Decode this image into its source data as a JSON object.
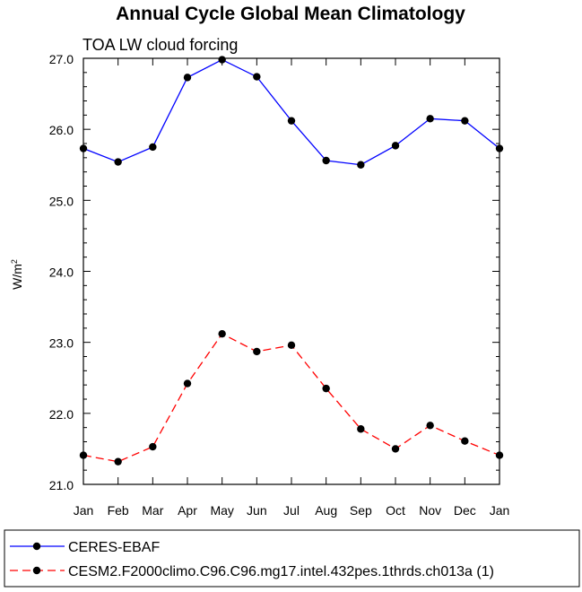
{
  "chart_data": {
    "type": "line",
    "title": "Annual Cycle Global Mean Climatology",
    "subtitle": "TOA LW cloud forcing",
    "ylabel": {
      "base": "W/m",
      "sup": "2"
    },
    "xlabel": "",
    "categories": [
      "Jan",
      "Feb",
      "Mar",
      "Apr",
      "May",
      "Jun",
      "Jul",
      "Aug",
      "Sep",
      "Oct",
      "Nov",
      "Dec",
      "Jan"
    ],
    "ylim": [
      21.0,
      27.0
    ],
    "yticks": [
      "21.0",
      "22.0",
      "23.0",
      "24.0",
      "25.0",
      "26.0",
      "27.0"
    ],
    "series": [
      {
        "name": "CERES-EBAF",
        "color": "#0000ff",
        "dash": "solid",
        "values": [
          25.73,
          25.54,
          25.75,
          26.73,
          26.98,
          26.74,
          26.12,
          25.56,
          25.5,
          25.77,
          26.15,
          26.12,
          25.73
        ]
      },
      {
        "name": "CESM2.F2000climo.C96.C96.mg17.intel.432pes.1thrds.ch013a (1)",
        "color": "#ff0000",
        "dash": "dashed",
        "values": [
          21.41,
          21.32,
          21.53,
          22.42,
          23.12,
          22.87,
          22.96,
          22.35,
          21.78,
          21.5,
          21.83,
          21.61,
          21.41
        ]
      }
    ],
    "legend": "bottom"
  }
}
